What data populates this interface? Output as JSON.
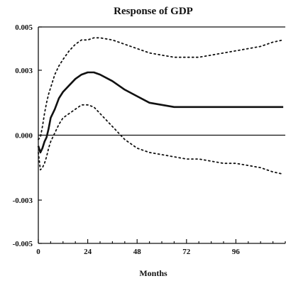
{
  "chart_data": {
    "type": "line",
    "title": "Response of GDP",
    "xlabel": "Months",
    "ylabel": "",
    "xlim": [
      0,
      120
    ],
    "ylim": [
      -0.005,
      0.005
    ],
    "x_ticks": [
      0,
      24,
      48,
      72,
      96
    ],
    "x_tick_labels": [
      "0",
      "24",
      "48",
      "72",
      "96"
    ],
    "y_ticks": [
      0.005,
      0.003,
      0.0,
      -0.003,
      -0.005
    ],
    "y_tick_labels": [
      "0.005",
      "0.003",
      "0.000",
      "-0.003",
      "-0.005"
    ],
    "zero_line": 0.0,
    "grid": false,
    "x": [
      0,
      1,
      2,
      3,
      4,
      5,
      6,
      8,
      10,
      12,
      15,
      18,
      21,
      24,
      27,
      30,
      36,
      42,
      48,
      54,
      60,
      66,
      72,
      78,
      84,
      90,
      96,
      102,
      108,
      114,
      119
    ],
    "series": [
      {
        "style": "dotted",
        "color": "#111111",
        "values": [
          -0.0002,
          -0.0001,
          0.0004,
          0.001,
          0.0015,
          0.0019,
          0.0022,
          0.0028,
          0.0032,
          0.0035,
          0.0039,
          0.0042,
          0.0044,
          0.0044,
          0.0045,
          0.0045,
          0.0044,
          0.0042,
          0.004,
          0.0038,
          0.0037,
          0.0036,
          0.0036,
          0.0036,
          0.0037,
          0.0038,
          0.0039,
          0.004,
          0.0041,
          0.0043,
          0.0044
        ]
      },
      {
        "style": "solid",
        "color": "#111111",
        "values": [
          -0.0005,
          -0.0008,
          -0.0006,
          -0.0003,
          -0.0001,
          0.0003,
          0.0008,
          0.0012,
          0.0017,
          0.002,
          0.0023,
          0.0026,
          0.0028,
          0.0029,
          0.0029,
          0.0028,
          0.0025,
          0.0021,
          0.0018,
          0.0015,
          0.0014,
          0.0013,
          0.0013,
          0.0013,
          0.0013,
          0.0013,
          0.0013,
          0.0013,
          0.0013,
          0.0013,
          0.0013
        ]
      },
      {
        "style": "dotted",
        "color": "#111111",
        "values": [
          -0.0008,
          -0.0016,
          -0.0015,
          -0.0013,
          -0.001,
          -0.0006,
          -0.0003,
          0.0001,
          0.0005,
          0.0008,
          0.001,
          0.0012,
          0.0014,
          0.0014,
          0.0013,
          0.001,
          0.0004,
          -0.0002,
          -0.0006,
          -0.0008,
          -0.0009,
          -0.001,
          -0.0011,
          -0.0011,
          -0.0012,
          -0.0013,
          -0.0013,
          -0.0014,
          -0.0015,
          -0.0017,
          -0.0018
        ]
      }
    ]
  }
}
